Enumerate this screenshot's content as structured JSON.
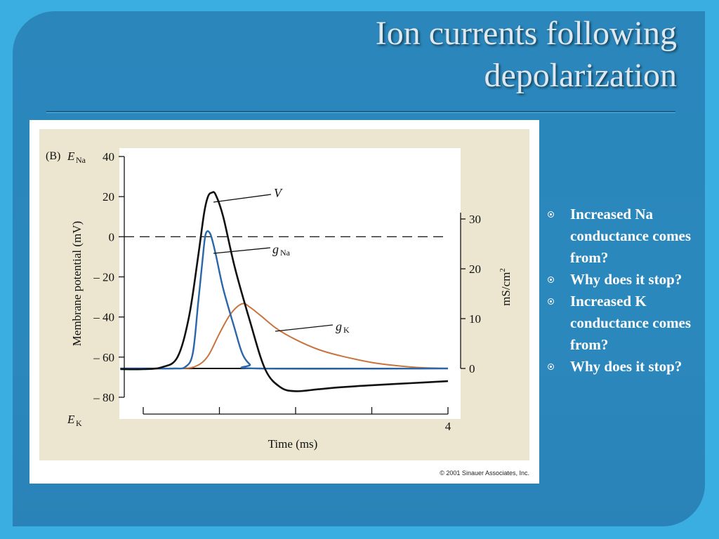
{
  "slide": {
    "title_line1": "Ion currents following",
    "title_line2": "depolarization",
    "background_color": "#2b88bd"
  },
  "figure": {
    "panel_label": "(B)",
    "copyright": "© 2001 Sinauer Associates, Inc."
  },
  "chart_data": {
    "type": "line",
    "panel": "(B)",
    "xlabel": "Time (ms)",
    "xlim": [
      0,
      4
    ],
    "x_ticks": [
      0,
      1,
      2,
      3,
      4
    ],
    "x_tick_labels": [
      "",
      "",
      "",
      "",
      "4"
    ],
    "ylabel_left": "Membrane potential (mV)",
    "ylim_left": [
      -80,
      40
    ],
    "y_ticks_left": [
      40,
      20,
      0,
      -20,
      -40,
      -60,
      -80
    ],
    "y_tick_labels_left": [
      "40",
      "20",
      "0",
      "– 20",
      "– 40",
      "– 60",
      "– 80"
    ],
    "E_Na_label": "E",
    "E_Na_sub": "Na",
    "E_K_label": "E",
    "E_K_sub": "K",
    "ylabel_right": "mS/cm",
    "ylabel_right_sup": "2",
    "ylim_right": [
      0,
      30
    ],
    "y_ticks_right": [
      0,
      10,
      20,
      30
    ],
    "y_tick_labels_right": [
      "0",
      "10",
      "20",
      "30"
    ],
    "reference_line_mV": 0,
    "series": [
      {
        "name": "V",
        "axis": "left",
        "color": "#111111",
        "x": [
          -0.3,
          0.0,
          0.25,
          0.45,
          0.6,
          0.72,
          0.8,
          0.85,
          0.9,
          0.95,
          1.05,
          1.2,
          1.4,
          1.6,
          1.8,
          2.0,
          2.3,
          2.6,
          3.0,
          3.5,
          4.0
        ],
        "y": [
          -66,
          -66,
          -65,
          -60,
          -40,
          -10,
          12,
          20,
          22,
          21,
          10,
          -15,
          -42,
          -66,
          -75,
          -77,
          -76,
          -75,
          -74,
          -73,
          -72
        ]
      },
      {
        "name": "g",
        "sub": "Na",
        "axis": "right",
        "color": "#2b66a8",
        "x": [
          -0.3,
          0.0,
          0.4,
          0.55,
          0.65,
          0.72,
          0.78,
          0.82,
          0.88,
          0.95,
          1.05,
          1.2,
          1.3,
          1.4,
          1.5,
          4.0
        ],
        "y": [
          0,
          0,
          0,
          0.3,
          3,
          13,
          22,
          27,
          27,
          23,
          16,
          8,
          3,
          0.8,
          0,
          0
        ]
      },
      {
        "name": "g",
        "sub": "K",
        "axis": "right",
        "color": "#c8743e",
        "x": [
          -0.3,
          0.0,
          0.5,
          0.7,
          0.85,
          1.0,
          1.15,
          1.3,
          1.4,
          1.55,
          1.75,
          2.0,
          2.3,
          2.6,
          3.0,
          3.3,
          3.6,
          4.0
        ],
        "y": [
          0,
          0,
          0,
          0.5,
          2.5,
          7,
          11,
          13,
          12.3,
          10.5,
          8,
          5.8,
          3.8,
          2.5,
          1.2,
          0.6,
          0.2,
          0
        ]
      },
      {
        "name": "",
        "axis": "right",
        "color": "#111111",
        "x": [
          -0.3,
          4.0
        ],
        "y": [
          0,
          0
        ]
      }
    ]
  },
  "bullets": [
    "Increased Na conductance comes from?",
    "Why does it stop?",
    "Increased K conductance comes from?",
    "Why does it stop?"
  ]
}
